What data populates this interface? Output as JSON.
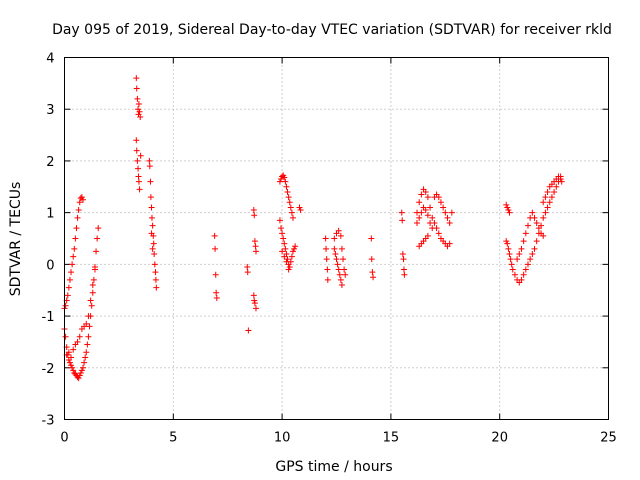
{
  "chart_data": {
    "type": "scatter",
    "title": "Day 095 of 2019, Sidereal Day-to-day VTEC variation (SDTVAR) for receiver rkld",
    "xlabel": "GPS time / hours",
    "ylabel": "SDTVAR / TECUs",
    "xlim": [
      0,
      25
    ],
    "ylim": [
      -3,
      4
    ],
    "xticks": [
      0,
      5,
      10,
      15,
      20,
      25
    ],
    "yticks": [
      -3,
      -2,
      -1,
      0,
      1,
      2,
      3,
      4
    ],
    "xtick_labels": [
      "0",
      "5",
      "10",
      "15",
      "20",
      "25"
    ],
    "ytick_labels": [
      "-3",
      "-2",
      "-1",
      "0",
      "1",
      "2",
      "3",
      "4"
    ],
    "grid": true,
    "marker": "+",
    "color": "#ff0000",
    "series": [
      {
        "name": "SDTVAR",
        "points": [
          [
            0.0,
            -0.85
          ],
          [
            0.05,
            -0.8
          ],
          [
            0.1,
            -0.7
          ],
          [
            0.15,
            -0.6
          ],
          [
            0.2,
            -0.45
          ],
          [
            0.25,
            -0.3
          ],
          [
            0.3,
            -0.15
          ],
          [
            0.35,
            0.0
          ],
          [
            0.4,
            0.15
          ],
          [
            0.45,
            0.3
          ],
          [
            0.5,
            0.5
          ],
          [
            0.55,
            0.7
          ],
          [
            0.6,
            0.9
          ],
          [
            0.65,
            1.05
          ],
          [
            0.7,
            1.2
          ],
          [
            0.75,
            1.28
          ],
          [
            0.8,
            1.3
          ],
          [
            0.85,
            1.25
          ],
          [
            0.0,
            -1.25
          ],
          [
            0.05,
            -1.4
          ],
          [
            0.1,
            -1.6
          ],
          [
            0.15,
            -1.75
          ],
          [
            0.2,
            -1.85
          ],
          [
            0.25,
            -1.9
          ],
          [
            0.3,
            -1.95
          ],
          [
            0.35,
            -2.0
          ],
          [
            0.4,
            -2.05
          ],
          [
            0.45,
            -2.1
          ],
          [
            0.5,
            -2.12
          ],
          [
            0.55,
            -2.15
          ],
          [
            0.6,
            -2.18
          ],
          [
            0.65,
            -2.2
          ],
          [
            0.7,
            -2.15
          ],
          [
            0.75,
            -2.1
          ],
          [
            0.8,
            -2.05
          ],
          [
            0.85,
            -2.0
          ],
          [
            0.9,
            -1.9
          ],
          [
            0.95,
            -1.8
          ],
          [
            1.0,
            -1.7
          ],
          [
            1.05,
            -1.55
          ],
          [
            1.1,
            -1.4
          ],
          [
            1.15,
            -1.2
          ],
          [
            1.2,
            -1.0
          ],
          [
            1.25,
            -0.8
          ],
          [
            1.3,
            -0.55
          ],
          [
            1.35,
            -0.3
          ],
          [
            1.4,
            -0.05
          ],
          [
            1.45,
            0.25
          ],
          [
            1.5,
            0.5
          ],
          [
            1.55,
            0.7
          ],
          [
            0.1,
            -1.75
          ],
          [
            0.2,
            -1.7
          ],
          [
            0.3,
            -1.8
          ],
          [
            0.4,
            -1.65
          ],
          [
            0.5,
            -1.55
          ],
          [
            0.6,
            -1.5
          ],
          [
            0.7,
            -1.4
          ],
          [
            0.8,
            -1.25
          ],
          [
            0.9,
            -1.2
          ],
          [
            1.0,
            -1.15
          ],
          [
            1.1,
            -1.0
          ],
          [
            1.2,
            -0.7
          ],
          [
            1.3,
            -0.4
          ],
          [
            1.4,
            -0.1
          ],
          [
            3.3,
            3.6
          ],
          [
            3.32,
            3.4
          ],
          [
            3.35,
            3.2
          ],
          [
            3.38,
            3.0
          ],
          [
            3.4,
            2.9
          ],
          [
            3.42,
            3.1
          ],
          [
            3.45,
            2.95
          ],
          [
            3.48,
            2.85
          ],
          [
            3.3,
            2.4
          ],
          [
            3.32,
            2.2
          ],
          [
            3.35,
            2.0
          ],
          [
            3.38,
            1.85
          ],
          [
            3.4,
            1.7
          ],
          [
            3.42,
            1.6
          ],
          [
            3.45,
            1.45
          ],
          [
            3.5,
            2.1
          ],
          [
            3.9,
            2.0
          ],
          [
            3.92,
            1.9
          ],
          [
            3.95,
            1.6
          ],
          [
            3.97,
            1.3
          ],
          [
            4.0,
            1.1
          ],
          [
            4.02,
            0.9
          ],
          [
            4.05,
            0.75
          ],
          [
            4.08,
            0.55
          ],
          [
            4.1,
            0.4
          ],
          [
            4.12,
            0.2
          ],
          [
            4.15,
            0.0
          ],
          [
            4.18,
            -0.15
          ],
          [
            4.2,
            -0.3
          ],
          [
            4.22,
            -0.45
          ],
          [
            4.0,
            0.6
          ],
          [
            4.05,
            0.3
          ],
          [
            6.9,
            0.55
          ],
          [
            6.92,
            0.3
          ],
          [
            6.95,
            -0.2
          ],
          [
            6.97,
            -0.55
          ],
          [
            7.0,
            -0.65
          ],
          [
            8.4,
            -0.05
          ],
          [
            8.42,
            -0.15
          ],
          [
            8.45,
            -1.28
          ],
          [
            8.7,
            1.05
          ],
          [
            8.72,
            0.95
          ],
          [
            8.75,
            0.45
          ],
          [
            8.78,
            0.35
          ],
          [
            8.8,
            0.25
          ],
          [
            8.7,
            -0.6
          ],
          [
            8.72,
            -0.7
          ],
          [
            8.75,
            -0.75
          ],
          [
            8.8,
            -0.85
          ],
          [
            9.9,
            1.6
          ],
          [
            9.95,
            1.65
          ],
          [
            10.0,
            1.7
          ],
          [
            10.05,
            1.72
          ],
          [
            10.1,
            1.68
          ],
          [
            10.15,
            1.6
          ],
          [
            10.2,
            1.5
          ],
          [
            10.25,
            1.4
          ],
          [
            10.3,
            1.3
          ],
          [
            10.35,
            1.2
          ],
          [
            10.4,
            1.1
          ],
          [
            10.45,
            1.0
          ],
          [
            10.5,
            0.9
          ],
          [
            9.9,
            0.85
          ],
          [
            9.95,
            0.7
          ],
          [
            10.0,
            0.6
          ],
          [
            10.05,
            0.5
          ],
          [
            10.1,
            0.4
          ],
          [
            10.15,
            0.3
          ],
          [
            10.2,
            0.2
          ],
          [
            10.25,
            0.1
          ],
          [
            10.3,
            0.0
          ],
          [
            10.35,
            -0.05
          ],
          [
            10.4,
            0.05
          ],
          [
            10.45,
            0.15
          ],
          [
            10.5,
            0.25
          ],
          [
            10.55,
            0.3
          ],
          [
            10.6,
            0.35
          ],
          [
            10.0,
            0.25
          ],
          [
            10.1,
            0.15
          ],
          [
            10.2,
            0.05
          ],
          [
            10.3,
            -0.1
          ],
          [
            10.8,
            1.1
          ],
          [
            10.85,
            1.05
          ],
          [
            12.0,
            0.5
          ],
          [
            12.02,
            0.3
          ],
          [
            12.05,
            0.1
          ],
          [
            12.08,
            -0.1
          ],
          [
            12.1,
            -0.3
          ],
          [
            12.4,
            0.3
          ],
          [
            12.45,
            0.2
          ],
          [
            12.5,
            0.1
          ],
          [
            12.55,
            0.0
          ],
          [
            12.6,
            -0.1
          ],
          [
            12.65,
            -0.2
          ],
          [
            12.7,
            -0.3
          ],
          [
            12.75,
            -0.4
          ],
          [
            12.4,
            0.5
          ],
          [
            12.5,
            0.6
          ],
          [
            12.6,
            0.65
          ],
          [
            12.7,
            0.55
          ],
          [
            12.75,
            0.3
          ],
          [
            12.8,
            0.1
          ],
          [
            12.85,
            -0.1
          ],
          [
            12.9,
            -0.2
          ],
          [
            14.1,
            0.5
          ],
          [
            14.12,
            0.1
          ],
          [
            14.15,
            -0.15
          ],
          [
            14.18,
            -0.25
          ],
          [
            15.5,
            1.0
          ],
          [
            15.52,
            0.85
          ],
          [
            15.55,
            0.2
          ],
          [
            15.58,
            0.1
          ],
          [
            15.6,
            -0.1
          ],
          [
            15.62,
            -0.2
          ],
          [
            16.2,
            1.0
          ],
          [
            16.3,
            1.2
          ],
          [
            16.4,
            1.35
          ],
          [
            16.5,
            1.45
          ],
          [
            16.6,
            1.4
          ],
          [
            16.7,
            1.3
          ],
          [
            16.8,
            1.1
          ],
          [
            16.9,
            0.9
          ],
          [
            16.2,
            0.8
          ],
          [
            16.3,
            0.9
          ],
          [
            16.4,
            1.0
          ],
          [
            16.5,
            1.1
          ],
          [
            16.6,
            1.05
          ],
          [
            16.7,
            0.95
          ],
          [
            16.8,
            0.8
          ],
          [
            16.9,
            0.7
          ],
          [
            16.3,
            0.35
          ],
          [
            16.4,
            0.4
          ],
          [
            16.5,
            0.45
          ],
          [
            16.6,
            0.5
          ],
          [
            16.7,
            0.55
          ],
          [
            17.0,
            1.3
          ],
          [
            17.1,
            1.35
          ],
          [
            17.2,
            1.3
          ],
          [
            17.3,
            1.2
          ],
          [
            17.4,
            1.1
          ],
          [
            17.5,
            1.0
          ],
          [
            17.6,
            0.9
          ],
          [
            17.7,
            0.8
          ],
          [
            17.8,
            1.0
          ],
          [
            17.0,
            0.8
          ],
          [
            17.1,
            0.7
          ],
          [
            17.2,
            0.6
          ],
          [
            17.3,
            0.5
          ],
          [
            17.4,
            0.45
          ],
          [
            17.5,
            0.4
          ],
          [
            17.6,
            0.35
          ],
          [
            17.7,
            0.4
          ],
          [
            20.3,
            1.15
          ],
          [
            20.35,
            1.1
          ],
          [
            20.4,
            1.05
          ],
          [
            20.45,
            1.0
          ],
          [
            20.3,
            0.45
          ],
          [
            20.35,
            0.4
          ],
          [
            20.4,
            0.3
          ],
          [
            20.45,
            0.2
          ],
          [
            20.5,
            0.1
          ],
          [
            20.55,
            0.0
          ],
          [
            20.6,
            -0.1
          ],
          [
            20.7,
            -0.2
          ],
          [
            20.8,
            -0.3
          ],
          [
            20.9,
            -0.35
          ],
          [
            21.0,
            -0.3
          ],
          [
            21.1,
            -0.2
          ],
          [
            21.2,
            -0.1
          ],
          [
            20.8,
            0.1
          ],
          [
            20.9,
            0.2
          ],
          [
            21.0,
            0.3
          ],
          [
            21.1,
            0.45
          ],
          [
            21.2,
            0.6
          ],
          [
            21.3,
            0.75
          ],
          [
            21.4,
            0.9
          ],
          [
            21.5,
            1.0
          ],
          [
            21.6,
            0.9
          ],
          [
            21.7,
            0.8
          ],
          [
            21.8,
            0.7
          ],
          [
            21.9,
            0.6
          ],
          [
            22.0,
            0.55
          ],
          [
            21.3,
            0.0
          ],
          [
            21.4,
            0.1
          ],
          [
            21.5,
            0.2
          ],
          [
            21.6,
            0.3
          ],
          [
            21.7,
            0.45
          ],
          [
            21.8,
            0.6
          ],
          [
            21.9,
            0.75
          ],
          [
            22.0,
            0.9
          ],
          [
            22.1,
            1.0
          ],
          [
            22.2,
            1.1
          ],
          [
            22.3,
            1.2
          ],
          [
            22.4,
            1.3
          ],
          [
            22.5,
            1.4
          ],
          [
            22.6,
            1.5
          ],
          [
            22.7,
            1.6
          ],
          [
            22.8,
            1.65
          ],
          [
            22.0,
            1.2
          ],
          [
            22.1,
            1.3
          ],
          [
            22.2,
            1.4
          ],
          [
            22.3,
            1.5
          ],
          [
            22.4,
            1.55
          ],
          [
            22.5,
            1.6
          ],
          [
            22.6,
            1.65
          ],
          [
            22.7,
            1.7
          ],
          [
            22.8,
            1.7
          ],
          [
            22.85,
            1.6
          ]
        ]
      }
    ]
  }
}
